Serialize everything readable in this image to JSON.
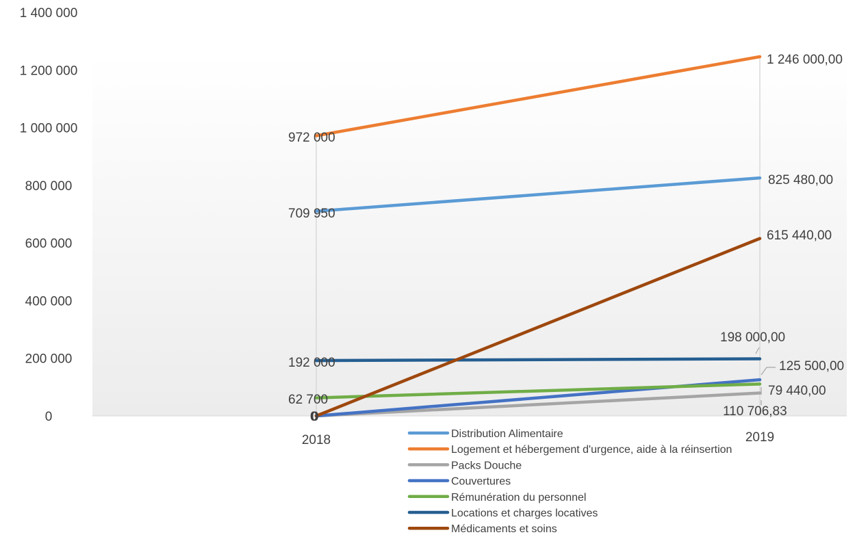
{
  "chart_data": {
    "type": "line",
    "title": "",
    "xlabel": "",
    "ylabel": "",
    "categories": [
      "2018",
      "2019"
    ],
    "ylim": [
      0,
      1400000
    ],
    "y_ticks": [
      0,
      200000,
      400000,
      600000,
      800000,
      1000000,
      1200000,
      1400000
    ],
    "y_tick_labels": [
      "0",
      "200 000",
      "400 000",
      "600 000",
      "800 000",
      "1 000 000",
      "1 200 000",
      "1 400 000"
    ],
    "grid": false,
    "drop_lines": true,
    "legend_position": "bottom",
    "series": [
      {
        "name": "Distribution Alimentaire",
        "color": "#5B9BD5",
        "values": [
          709950,
          825480
        ],
        "labels": [
          "709 950",
          "825 480,00"
        ]
      },
      {
        "name": "Logement et hébergement d'urgence, aide à la réinsertion",
        "color": "#ED7D31",
        "values": [
          972000,
          1246000
        ],
        "labels": [
          "972 000",
          "1 246 000,00"
        ]
      },
      {
        "name": "Packs Douche",
        "color": "#A5A5A5",
        "values": [
          0,
          79440
        ],
        "labels": [
          "0",
          "79 440,00"
        ]
      },
      {
        "name": "Couvertures",
        "color": "#4472C4",
        "values": [
          0,
          125500
        ],
        "labels": [
          "0",
          "125 500,00"
        ]
      },
      {
        "name": "Rémunération du personnel",
        "color": "#70AD47",
        "values": [
          62700,
          110706.83
        ],
        "labels": [
          "62 700",
          "110 706,83"
        ]
      },
      {
        "name": "Locations et charges locatives",
        "color": "#255E91",
        "values": [
          192000,
          198000
        ],
        "labels": [
          "192 000",
          "198 000,00"
        ]
      },
      {
        "name": "Médicaments et soins",
        "color": "#9E480E",
        "values": [
          0,
          615440
        ],
        "labels": [
          "0",
          "615 440,00"
        ]
      }
    ]
  }
}
